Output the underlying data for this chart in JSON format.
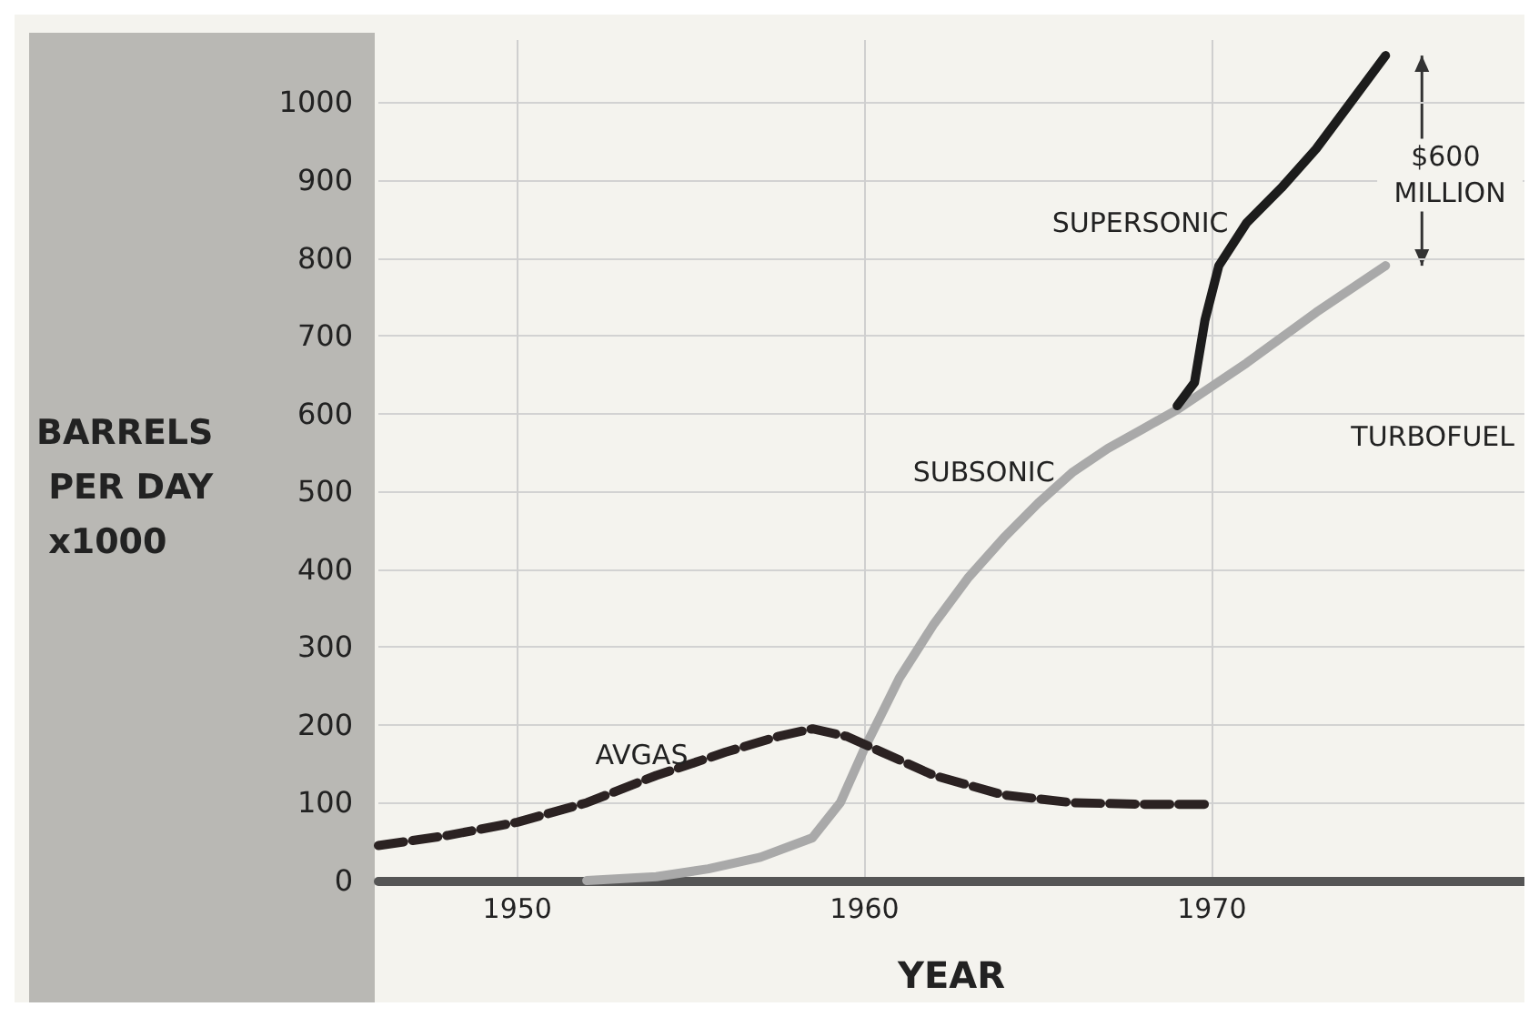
{
  "chart_data": {
    "type": "line",
    "xlabel": "YEAR",
    "ylabel": "BARRELS PER DAY x1000",
    "xlim": [
      1946,
      1979
    ],
    "xticks": [
      1950,
      1960,
      1970
    ],
    "ylim": [
      0,
      1080
    ],
    "yticks": [
      0,
      100,
      200,
      300,
      400,
      500,
      600,
      700,
      800,
      900,
      1000
    ],
    "grid": true,
    "legend": false,
    "marker": "none",
    "series": [
      {
        "name": "AVGAS",
        "color": "#2b2222",
        "line_style": "dashed",
        "x": [
          1946,
          1948,
          1950,
          1952,
          1954,
          1956,
          1957.5,
          1958.5,
          1959.5,
          1960.5,
          1962,
          1964,
          1966,
          1968,
          1970
        ],
        "values": [
          45,
          58,
          75,
          100,
          135,
          165,
          185,
          195,
          185,
          165,
          135,
          110,
          100,
          98,
          98
        ]
      },
      {
        "name": "SUBSONIC",
        "color": "#a9a9a9",
        "line_style": "solid",
        "x": [
          1952,
          1954,
          1955.5,
          1957,
          1958.5,
          1959.3,
          1960,
          1961,
          1962,
          1963,
          1964,
          1965,
          1966,
          1967,
          1968,
          1969,
          1971,
          1973,
          1975
        ],
        "values": [
          0,
          5,
          15,
          30,
          55,
          100,
          170,
          260,
          330,
          390,
          440,
          485,
          525,
          555,
          580,
          605,
          665,
          730,
          790
        ]
      },
      {
        "name": "SUPERSONIC",
        "color": "#1c1c1c",
        "line_style": "solid",
        "x": [
          1969,
          1969.5,
          1969.8,
          1970.2,
          1971,
          1972,
          1973,
          1974,
          1975
        ],
        "values": [
          610,
          640,
          720,
          790,
          845,
          890,
          940,
          1000,
          1060
        ]
      }
    ],
    "annotations": [
      "TURBOFUEL",
      "$600 MILLION"
    ]
  }
}
